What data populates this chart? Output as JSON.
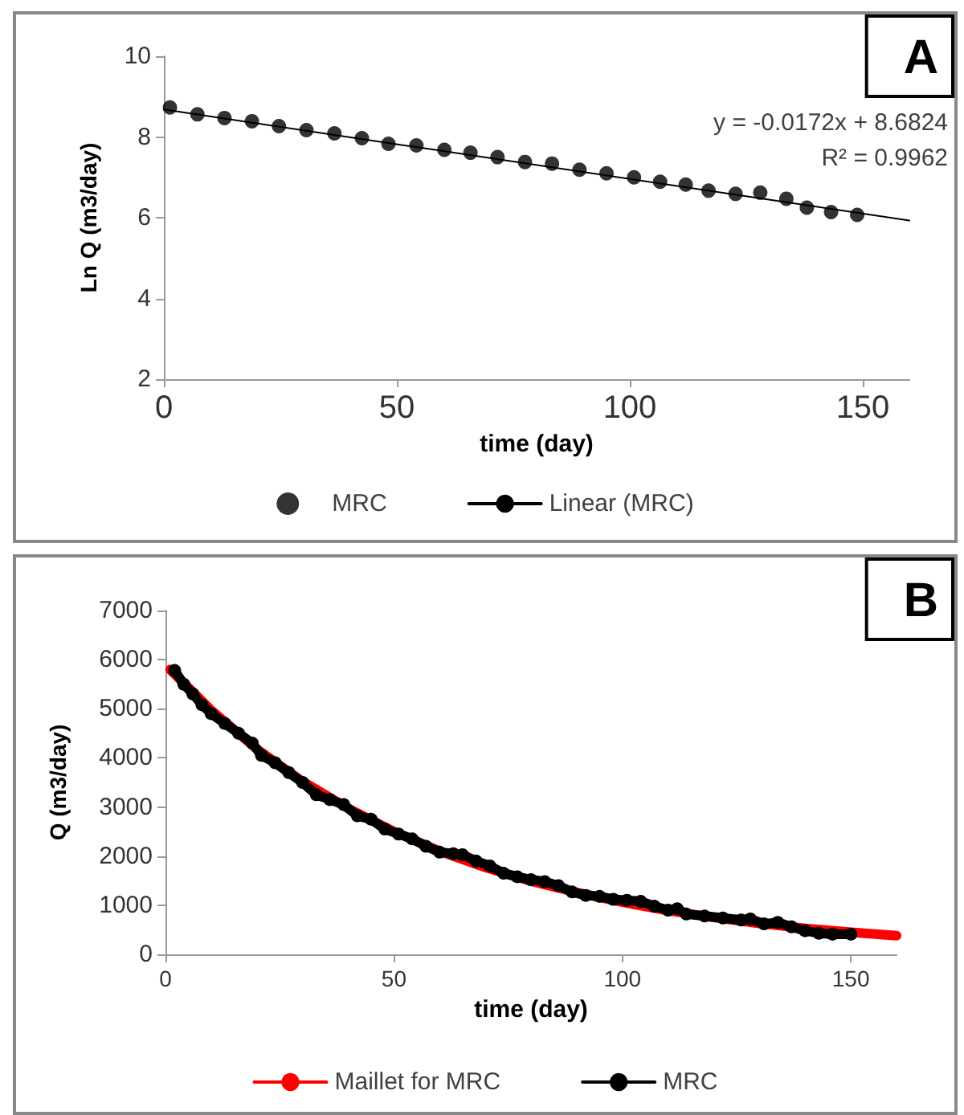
{
  "chart_data": [
    {
      "type": "scatter",
      "xlabel": "time (day)",
      "ylabel": "Ln Q (m3/day)",
      "annotations": [
        "A",
        "y = -0.0172x + 8.6824",
        "R² = 0.9962"
      ],
      "xlim": [
        0,
        160
      ],
      "xticks": [
        0,
        50,
        100,
        150
      ],
      "ylim": [
        2,
        10
      ],
      "yticks": [
        2,
        4,
        6,
        8,
        10
      ],
      "grid": false,
      "legend": "bottom",
      "marker": "circle",
      "series": [
        {
          "name": "MRC",
          "color": "#000000",
          "x": [
            1.3,
            7.2,
            13,
            18.9,
            24.7,
            30.6,
            36.6,
            42.5,
            48.2,
            54.2,
            60.2,
            65.8,
            71.6,
            77.5,
            83.3,
            89.2,
            95,
            100.9,
            106.5,
            112,
            116.9,
            122.7,
            128,
            133.6,
            138,
            143.2,
            148.8
          ],
          "values": [
            8.73,
            8.56,
            8.47,
            8.39,
            8.27,
            8.17,
            8.09,
            7.97,
            7.83,
            7.79,
            7.68,
            7.61,
            7.5,
            7.38,
            7.34,
            7.19,
            7.1,
            7.0,
            6.89,
            6.82,
            6.67,
            6.59,
            6.62,
            6.47,
            6.25,
            6.14,
            6.07
          ]
        },
        {
          "name": "Linear (MRC)",
          "type": "line",
          "marker": "none",
          "color": "#000000",
          "x": [
            0,
            160
          ],
          "values": [
            8.68,
            5.93
          ]
        }
      ]
    },
    {
      "type": "line",
      "xlabel": "time (day)",
      "ylabel": "Q (m3/day)",
      "annotations": [
        "B"
      ],
      "xlim": [
        0,
        160
      ],
      "xticks": [
        0,
        50,
        100,
        150
      ],
      "ylim": [
        0,
        7000
      ],
      "yticks": [
        0,
        1000,
        2000,
        3000,
        4000,
        5000,
        6000,
        7000
      ],
      "grid": false,
      "legend": "bottom",
      "series": [
        {
          "name": "Maillet for MRC",
          "color": "#ff0000",
          "marker": "none",
          "x": [
            1,
            10,
            20,
            30,
            40,
            50,
            60,
            70,
            80,
            90,
            100,
            110,
            120,
            130,
            140,
            150,
            160
          ],
          "values": [
            5800,
            4970,
            4180,
            3520,
            2970,
            2500,
            2100,
            1770,
            1490,
            1260,
            1060,
            890,
            750,
            630,
            530,
            450,
            380
          ]
        },
        {
          "name": "MRC",
          "color": "#000000",
          "marker": "circle",
          "x": [
            2,
            4,
            6,
            8,
            10,
            13,
            16,
            19,
            21,
            24,
            27,
            30,
            33,
            36,
            39,
            42,
            45,
            48,
            51,
            54,
            57,
            60,
            63,
            65,
            68,
            71,
            74,
            77,
            80,
            83,
            86,
            89,
            92,
            95,
            98,
            101,
            104,
            107,
            110,
            112,
            114,
            118,
            122,
            126,
            128,
            131,
            134,
            137,
            140,
            143,
            146,
            150
          ],
          "values": [
            5780,
            5500,
            5300,
            5080,
            4900,
            4700,
            4500,
            4300,
            4050,
            3900,
            3700,
            3500,
            3250,
            3150,
            3050,
            2820,
            2750,
            2550,
            2450,
            2350,
            2200,
            2080,
            2050,
            2030,
            1900,
            1800,
            1650,
            1580,
            1520,
            1480,
            1400,
            1270,
            1200,
            1180,
            1120,
            1100,
            1080,
            980,
            900,
            930,
            820,
            780,
            740,
            700,
            720,
            620,
            650,
            560,
            480,
            430,
            410,
            410
          ]
        }
      ]
    }
  ]
}
